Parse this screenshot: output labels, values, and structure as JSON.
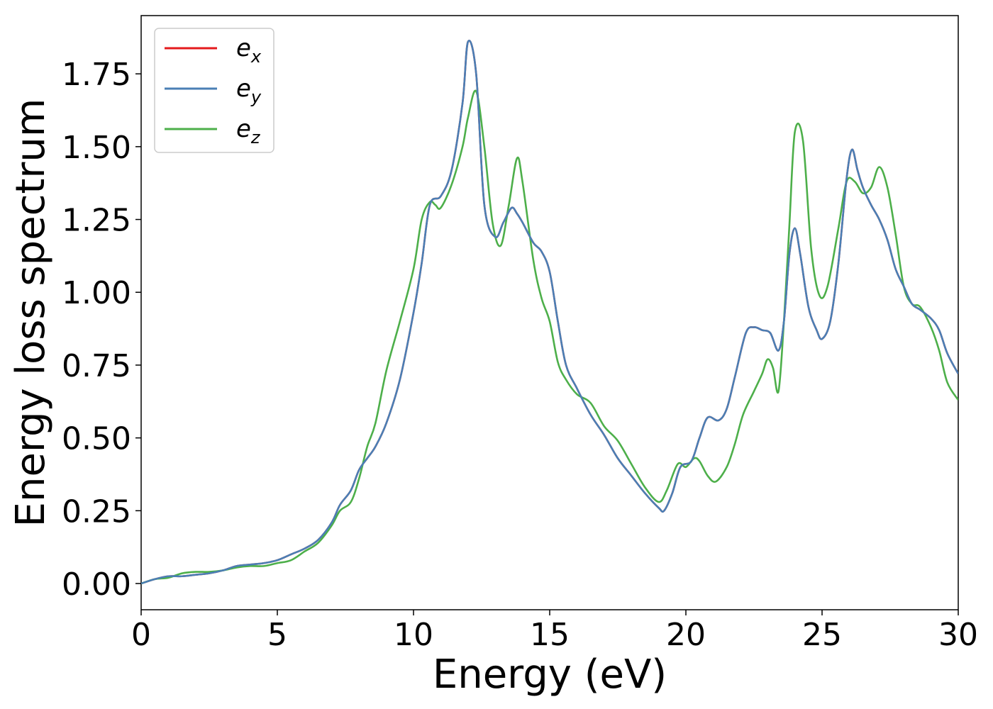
{
  "chart_data": {
    "type": "line",
    "title": "",
    "xlabel": "Energy (eV)",
    "ylabel": "Energy loss spectrum",
    "xlim": [
      0,
      30
    ],
    "ylim": [
      -0.09,
      1.95
    ],
    "xticks": [
      0,
      5,
      10,
      15,
      20,
      25,
      30
    ],
    "xtick_labels": [
      "0",
      "5",
      "10",
      "15",
      "20",
      "25",
      "30"
    ],
    "yticks": [
      0.0,
      0.25,
      0.5,
      0.75,
      1.0,
      1.25,
      1.5,
      1.75
    ],
    "ytick_labels": [
      "0.00",
      "0.25",
      "0.50",
      "0.75",
      "1.00",
      "1.25",
      "1.50",
      "1.75"
    ],
    "grid": false,
    "legend_position": "top-left",
    "series": [
      {
        "name": "e",
        "subscript": "x",
        "color": "#e41a1c",
        "x": [
          0,
          0.5,
          1,
          1.5,
          2,
          2.5,
          3,
          3.5,
          4,
          4.5,
          5,
          5.5,
          6,
          6.5,
          7,
          7.3,
          7.7,
          8,
          8.3,
          8.6,
          9,
          9.5,
          10,
          10.3,
          10.6,
          11,
          11.4,
          11.8,
          12,
          12.3,
          12.6,
          13,
          13.3,
          13.6,
          13.8,
          14,
          14.4,
          14.7,
          15,
          15.3,
          15.6,
          16,
          16.5,
          17,
          17.5,
          18,
          18.5,
          19,
          19.2,
          19.5,
          19.8,
          20.2,
          20.5,
          20.8,
          21.2,
          21.5,
          21.8,
          22.2,
          22.5,
          22.8,
          23.1,
          23.4,
          23.6,
          23.8,
          24,
          24.2,
          24.5,
          24.8,
          25,
          25.3,
          25.6,
          25.9,
          26.1,
          26.3,
          26.5,
          26.8,
          27.1,
          27.4,
          27.7,
          28,
          28.3,
          28.6,
          29,
          29.3,
          29.6,
          30
        ],
        "y": [
          0.0,
          0.015,
          0.025,
          0.025,
          0.03,
          0.035,
          0.045,
          0.06,
          0.065,
          0.07,
          0.08,
          0.1,
          0.12,
          0.15,
          0.21,
          0.27,
          0.32,
          0.39,
          0.43,
          0.47,
          0.55,
          0.7,
          0.93,
          1.1,
          1.3,
          1.33,
          1.42,
          1.65,
          1.86,
          1.75,
          1.3,
          1.19,
          1.24,
          1.29,
          1.27,
          1.24,
          1.17,
          1.14,
          1.07,
          0.9,
          0.75,
          0.67,
          0.58,
          0.51,
          0.43,
          0.37,
          0.31,
          0.26,
          0.25,
          0.31,
          0.4,
          0.42,
          0.5,
          0.57,
          0.56,
          0.6,
          0.71,
          0.86,
          0.88,
          0.87,
          0.86,
          0.8,
          0.9,
          1.13,
          1.22,
          1.13,
          0.95,
          0.87,
          0.84,
          0.9,
          1.1,
          1.39,
          1.49,
          1.42,
          1.36,
          1.3,
          1.25,
          1.18,
          1.08,
          1.02,
          0.96,
          0.94,
          0.91,
          0.87,
          0.79,
          0.72
        ]
      },
      {
        "name": "e",
        "subscript": "y",
        "color": "#4a7fb5",
        "x": [
          0,
          0.5,
          1,
          1.5,
          2,
          2.5,
          3,
          3.5,
          4,
          4.5,
          5,
          5.5,
          6,
          6.5,
          7,
          7.3,
          7.7,
          8,
          8.3,
          8.6,
          9,
          9.5,
          10,
          10.3,
          10.6,
          11,
          11.4,
          11.8,
          12,
          12.3,
          12.6,
          13,
          13.3,
          13.6,
          13.8,
          14,
          14.4,
          14.7,
          15,
          15.3,
          15.6,
          16,
          16.5,
          17,
          17.5,
          18,
          18.5,
          19,
          19.2,
          19.5,
          19.8,
          20.2,
          20.5,
          20.8,
          21.2,
          21.5,
          21.8,
          22.2,
          22.5,
          22.8,
          23.1,
          23.4,
          23.6,
          23.8,
          24,
          24.2,
          24.5,
          24.8,
          25,
          25.3,
          25.6,
          25.9,
          26.1,
          26.3,
          26.5,
          26.8,
          27.1,
          27.4,
          27.7,
          28,
          28.3,
          28.6,
          29,
          29.3,
          29.6,
          30
        ],
        "y": [
          0.0,
          0.015,
          0.025,
          0.025,
          0.03,
          0.035,
          0.045,
          0.06,
          0.065,
          0.07,
          0.08,
          0.1,
          0.12,
          0.15,
          0.21,
          0.27,
          0.32,
          0.39,
          0.43,
          0.47,
          0.55,
          0.7,
          0.93,
          1.1,
          1.3,
          1.33,
          1.42,
          1.65,
          1.86,
          1.75,
          1.3,
          1.19,
          1.24,
          1.29,
          1.27,
          1.24,
          1.17,
          1.14,
          1.07,
          0.9,
          0.75,
          0.67,
          0.58,
          0.51,
          0.43,
          0.37,
          0.31,
          0.26,
          0.25,
          0.31,
          0.4,
          0.42,
          0.5,
          0.57,
          0.56,
          0.6,
          0.71,
          0.86,
          0.88,
          0.87,
          0.86,
          0.8,
          0.9,
          1.13,
          1.22,
          1.13,
          0.95,
          0.87,
          0.84,
          0.9,
          1.1,
          1.39,
          1.49,
          1.42,
          1.36,
          1.3,
          1.25,
          1.18,
          1.08,
          1.02,
          0.96,
          0.94,
          0.91,
          0.87,
          0.79,
          0.72
        ]
      },
      {
        "name": "e",
        "subscript": "z",
        "color": "#4daf4a",
        "x": [
          0,
          0.5,
          1,
          1.5,
          2,
          2.5,
          3,
          3.5,
          4,
          4.5,
          5,
          5.5,
          6,
          6.5,
          7,
          7.3,
          7.7,
          8,
          8.3,
          8.6,
          9,
          9.5,
          10,
          10.3,
          10.6,
          10.8,
          11,
          11.4,
          11.8,
          12,
          12.3,
          12.6,
          12.9,
          13.2,
          13.5,
          13.8,
          14,
          14.4,
          14.7,
          15,
          15.3,
          15.6,
          16,
          16.5,
          17,
          17.5,
          18,
          18.5,
          19,
          19.3,
          19.7,
          20,
          20.3,
          20.5,
          20.8,
          21.1,
          21.5,
          21.8,
          22.1,
          22.5,
          22.8,
          23,
          23.2,
          23.4,
          23.6,
          23.8,
          24,
          24.3,
          24.6,
          24.9,
          25.2,
          25.6,
          25.9,
          26.2,
          26.5,
          26.8,
          27.1,
          27.4,
          27.7,
          28,
          28.3,
          28.6,
          29,
          29.3,
          29.6,
          30
        ],
        "y": [
          0.0,
          0.015,
          0.02,
          0.035,
          0.04,
          0.04,
          0.045,
          0.055,
          0.06,
          0.06,
          0.07,
          0.08,
          0.11,
          0.14,
          0.2,
          0.25,
          0.28,
          0.36,
          0.47,
          0.55,
          0.73,
          0.9,
          1.08,
          1.25,
          1.31,
          1.3,
          1.29,
          1.37,
          1.5,
          1.6,
          1.69,
          1.5,
          1.24,
          1.16,
          1.3,
          1.46,
          1.38,
          1.11,
          0.98,
          0.9,
          0.76,
          0.7,
          0.65,
          0.62,
          0.54,
          0.49,
          0.41,
          0.33,
          0.28,
          0.32,
          0.41,
          0.4,
          0.43,
          0.42,
          0.37,
          0.35,
          0.4,
          0.48,
          0.58,
          0.66,
          0.72,
          0.77,
          0.74,
          0.66,
          0.9,
          1.23,
          1.55,
          1.52,
          1.15,
          0.99,
          1.02,
          1.22,
          1.38,
          1.38,
          1.34,
          1.36,
          1.43,
          1.36,
          1.2,
          1.02,
          0.96,
          0.95,
          0.88,
          0.8,
          0.69,
          0.63
        ]
      }
    ]
  }
}
